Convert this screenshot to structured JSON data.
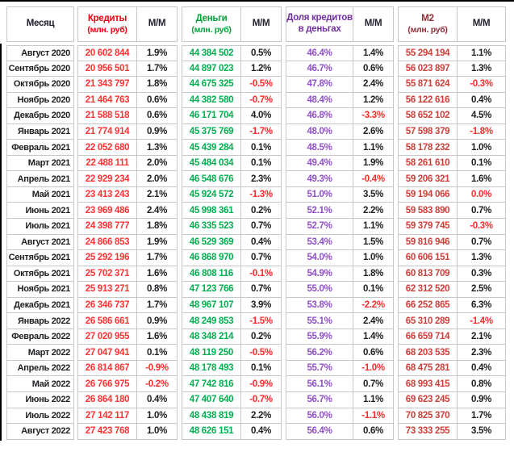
{
  "header": {
    "month": "Месяц",
    "credits": "Кредиты",
    "credits_sub": "(млн. руб)",
    "credits_mm": "М/М",
    "money": "Деньги",
    "money_sub": "(млн. руб)",
    "money_mm": "М/М",
    "share_line1": "Доля кредитов",
    "share_line2": "в деньгах",
    "share_mm": "М/М",
    "m2": "М2",
    "m2_sub": "(млн. руб)",
    "m2_mm": "М/М"
  },
  "colors": {
    "credits_header": "#e8000f",
    "credits_value": "#ff3333",
    "money_header": "#00a43a",
    "money_value": "#00b050",
    "share_header": "#7030a0",
    "share_value": "#9050c8",
    "m2_header": "#8e2f38",
    "m2_value": "#cd403a",
    "negative": "#ff2a2a",
    "positive_text": "#1d1d22",
    "grid": "#c7c7c7"
  },
  "rows": [
    {
      "month": "Август 2020",
      "credits": "20 602 844",
      "credits_mm": "1.9%",
      "money": "44 384 502",
      "money_mm": "0.5%",
      "share": "46.4%",
      "share_mm": "1.4%",
      "m2": "55 294 194",
      "m2_mm": "1.1%"
    },
    {
      "month": "Сентябрь 2020",
      "credits": "20 956 501",
      "credits_mm": "1.7%",
      "money": "44 897 023",
      "money_mm": "1.2%",
      "share": "46.7%",
      "share_mm": "0.6%",
      "m2": "56 023 897",
      "m2_mm": "1.3%"
    },
    {
      "month": "Октябрь 2020",
      "credits": "21 343 797",
      "credits_mm": "1.8%",
      "money": "44 675 325",
      "money_mm": "-0.5%",
      "share": "47.8%",
      "share_mm": "2.4%",
      "m2": "55 871 624",
      "m2_mm": "-0.3%"
    },
    {
      "month": "Ноябрь 2020",
      "credits": "21 464 763",
      "credits_mm": "0.6%",
      "money": "44 382 580",
      "money_mm": "-0.7%",
      "share": "48.4%",
      "share_mm": "1.2%",
      "m2": "56 122 616",
      "m2_mm": "0.4%"
    },
    {
      "month": "Декабрь 2020",
      "credits": "21 588 518",
      "credits_mm": "0.6%",
      "money": "46 171 704",
      "money_mm": "4.0%",
      "share": "46.8%",
      "share_mm": "-3.3%",
      "m2": "58 652 102",
      "m2_mm": "4.5%"
    },
    {
      "month": "Январь 2021",
      "credits": "21 774 914",
      "credits_mm": "0.9%",
      "money": "45 375 769",
      "money_mm": "-1.7%",
      "share": "48.0%",
      "share_mm": "2.6%",
      "m2": "57 598 379",
      "m2_mm": "-1.8%"
    },
    {
      "month": "Февраль 2021",
      "credits": "22 052 680",
      "credits_mm": "1.3%",
      "money": "45 439 284",
      "money_mm": "0.1%",
      "share": "48.5%",
      "share_mm": "1.1%",
      "m2": "58 178 232",
      "m2_mm": "1.0%"
    },
    {
      "month": "Март 2021",
      "credits": "22 488 111",
      "credits_mm": "2.0%",
      "money": "45 484 034",
      "money_mm": "0.1%",
      "share": "49.4%",
      "share_mm": "1.9%",
      "m2": "58 261 610",
      "m2_mm": "0.1%"
    },
    {
      "month": "Апрель 2021",
      "credits": "22 929 234",
      "credits_mm": "2.0%",
      "money": "46 548 676",
      "money_mm": "2.3%",
      "share": "49.3%",
      "share_mm": "-0.4%",
      "m2": "59 206 321",
      "m2_mm": "1.6%"
    },
    {
      "month": "Май 2021",
      "credits": "23 413 243",
      "credits_mm": "2.1%",
      "money": "45 924 572",
      "money_mm": "-1.3%",
      "share": "51.0%",
      "share_mm": "3.5%",
      "m2": "59 194 066",
      "m2_mm": "0.0%",
      "neg_override": [
        "m2_mm"
      ]
    },
    {
      "month": "Июнь 2021",
      "credits": "23 969 486",
      "credits_mm": "2.4%",
      "money": "45 998 361",
      "money_mm": "0.2%",
      "share": "52.1%",
      "share_mm": "2.2%",
      "m2": "59 583 890",
      "m2_mm": "0.7%"
    },
    {
      "month": "Июль 2021",
      "credits": "24 398 777",
      "credits_mm": "1.8%",
      "money": "46 335 523",
      "money_mm": "0.7%",
      "share": "52.7%",
      "share_mm": "1.1%",
      "m2": "59 379 745",
      "m2_mm": "-0.3%"
    },
    {
      "month": "Август 2021",
      "credits": "24 866 853",
      "credits_mm": "1.9%",
      "money": "46 529 369",
      "money_mm": "0.4%",
      "share": "53.4%",
      "share_mm": "1.5%",
      "m2": "59 816 946",
      "m2_mm": "0.7%"
    },
    {
      "month": "Сентябрь 2021",
      "credits": "25 292 196",
      "credits_mm": "1.7%",
      "money": "46 868 970",
      "money_mm": "0.7%",
      "share": "54.0%",
      "share_mm": "1.0%",
      "m2": "60 606 151",
      "m2_mm": "1.3%"
    },
    {
      "month": "Октябрь 2021",
      "credits": "25 702 371",
      "credits_mm": "1.6%",
      "money": "46 808 116",
      "money_mm": "-0.1%",
      "share": "54.9%",
      "share_mm": "1.8%",
      "m2": "60 813 709",
      "m2_mm": "0.3%"
    },
    {
      "month": "Ноябрь 2021",
      "credits": "25 913 271",
      "credits_mm": "0.8%",
      "money": "47 123 766",
      "money_mm": "0.7%",
      "share": "55.0%",
      "share_mm": "0.1%",
      "m2": "62 312 520",
      "m2_mm": "2.5%"
    },
    {
      "month": "Декабрь 2021",
      "credits": "26 346 737",
      "credits_mm": "1.7%",
      "money": "48 967 107",
      "money_mm": "3.9%",
      "share": "53.8%",
      "share_mm": "-2.2%",
      "m2": "66 252 865",
      "m2_mm": "6.3%"
    },
    {
      "month": "Январь 2022",
      "credits": "26 586 661",
      "credits_mm": "0.9%",
      "money": "48 249 853",
      "money_mm": "-1.5%",
      "share": "55.1%",
      "share_mm": "2.4%",
      "m2": "65 310 289",
      "m2_mm": "-1.4%"
    },
    {
      "month": "Февраль 2022",
      "credits": "27 020 955",
      "credits_mm": "1.6%",
      "money": "48 348 214",
      "money_mm": "0.2%",
      "share": "55.9%",
      "share_mm": "1.4%",
      "m2": "66 659 714",
      "m2_mm": "2.1%"
    },
    {
      "month": "Март 2022",
      "credits": "27 047 941",
      "credits_mm": "0.1%",
      "money": "48 119 250",
      "money_mm": "-0.5%",
      "share": "56.2%",
      "share_mm": "0.6%",
      "m2": "68 203 535",
      "m2_mm": "2.3%"
    },
    {
      "month": "Апрель 2022",
      "credits": "26 814 867",
      "credits_mm": "-0.9%",
      "money": "48 178 493",
      "money_mm": "0.1%",
      "share": "55.7%",
      "share_mm": "-1.0%",
      "m2": "68 475 281",
      "m2_mm": "0.4%"
    },
    {
      "month": "Май 2022",
      "credits": "26 766 975",
      "credits_mm": "-0.2%",
      "money": "47 742 816",
      "money_mm": "-0.9%",
      "share": "56.1%",
      "share_mm": "0.7%",
      "m2": "68 993 415",
      "m2_mm": "0.8%"
    },
    {
      "month": "Июнь 2022",
      "credits": "26 864 180",
      "credits_mm": "0.4%",
      "money": "47 407 640",
      "money_mm": "-0.7%",
      "share": "56.7%",
      "share_mm": "1.1%",
      "m2": "69 623 245",
      "m2_mm": "0.9%"
    },
    {
      "month": "Июль 2022",
      "credits": "27 142 117",
      "credits_mm": "1.0%",
      "money": "48 438 819",
      "money_mm": "2.2%",
      "share": "56.0%",
      "share_mm": "-1.1%",
      "m2": "70 825 370",
      "m2_mm": "1.7%"
    },
    {
      "month": "Август 2022",
      "credits": "27 423 768",
      "credits_mm": "1.0%",
      "money": "48 626 151",
      "money_mm": "0.4%",
      "share": "56.4%",
      "share_mm": "0.6%",
      "m2": "73 333 255",
      "m2_mm": "3.5%"
    }
  ]
}
